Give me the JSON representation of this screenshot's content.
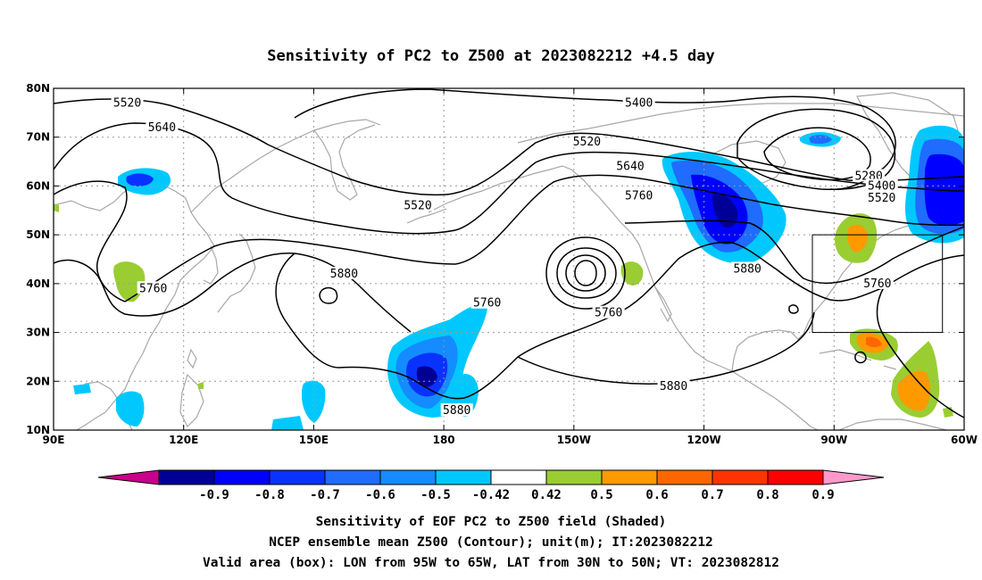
{
  "title": "Sensitivity of PC2 to Z500 at 2023082212 +4.5 day",
  "map": {
    "lon_range": [
      90,
      300
    ],
    "lat_range": [
      10,
      80
    ],
    "lat_labels": [
      "80N",
      "70N",
      "60N",
      "50N",
      "40N",
      "30N",
      "20N",
      "10N"
    ],
    "lon_labels": [
      "90E",
      "120E",
      "150E",
      "180",
      "150W",
      "120W",
      "90W",
      "60W"
    ],
    "valid_box": {
      "lon_min": 265,
      "lon_max": 295,
      "lat_min": 30,
      "lat_max": 50
    },
    "contour_labels": [
      {
        "text": "5520",
        "lon": 107,
        "lat": 77
      },
      {
        "text": "5640",
        "lon": 115,
        "lat": 72
      },
      {
        "text": "5400",
        "lon": 225,
        "lat": 77
      },
      {
        "text": "5520",
        "lon": 213,
        "lat": 69
      },
      {
        "text": "5640",
        "lon": 223,
        "lat": 64
      },
      {
        "text": "5760",
        "lon": 225,
        "lat": 58
      },
      {
        "text": "5520",
        "lon": 174,
        "lat": 56
      },
      {
        "text": "5280",
        "lon": 278,
        "lat": 62
      },
      {
        "text": "5400",
        "lon": 281,
        "lat": 60
      },
      {
        "text": "5520",
        "lon": 281,
        "lat": 57.5
      },
      {
        "text": "5880",
        "lon": 157,
        "lat": 42
      },
      {
        "text": "5760",
        "lon": 113,
        "lat": 39
      },
      {
        "text": "5760",
        "lon": 190,
        "lat": 36
      },
      {
        "text": "5760",
        "lon": 218,
        "lat": 34
      },
      {
        "text": "5880",
        "lon": 250,
        "lat": 43
      },
      {
        "text": "5760",
        "lon": 280,
        "lat": 40
      },
      {
        "text": "5880",
        "lon": 183,
        "lat": 14
      },
      {
        "text": "5880",
        "lon": 233,
        "lat": 19
      }
    ]
  },
  "colorbar": {
    "labels": [
      "-0.9",
      "-0.8",
      "-0.7",
      "-0.6",
      "-0.5",
      "-0.42",
      "0.42",
      "0.5",
      "0.6",
      "0.7",
      "0.8",
      "0.9"
    ],
    "colors": [
      "#000096",
      "#0000ff",
      "#0a32ff",
      "#1f6cff",
      "#148cff",
      "#00c8ff",
      "#ffffff",
      "#9acd32",
      "#ff9900",
      "#ff6600",
      "#ff3300",
      "#ff0000"
    ],
    "low_end_color": "#c8008c",
    "high_end_color": "#ff99cc"
  },
  "captions": [
    "Sensitivity of EOF PC2 to Z500 field (Shaded)",
    "NCEP ensemble mean Z500 (Contour); unit(m); IT:2023082212",
    "Valid area (box): LON from 95W to 65W, LAT from 30N to 50N; VT: 2023082812"
  ]
}
